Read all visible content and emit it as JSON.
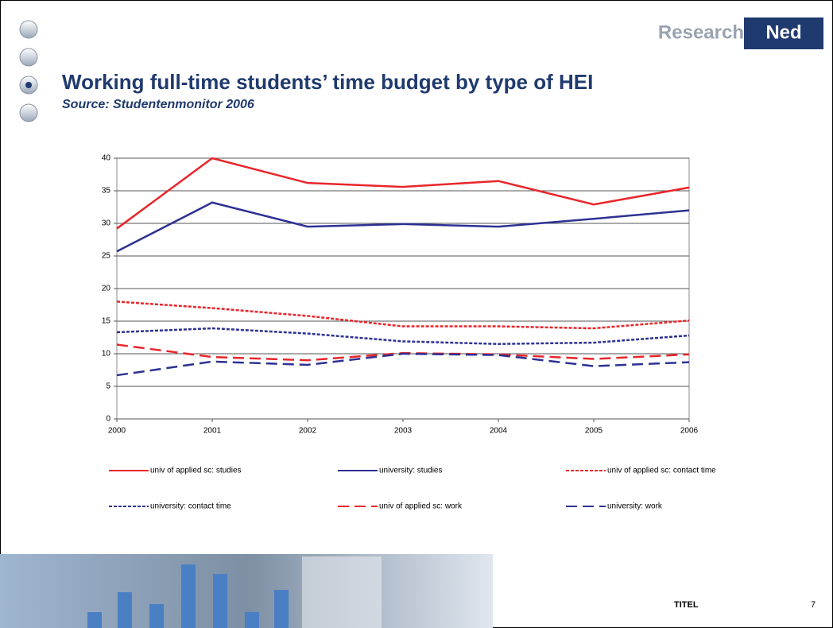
{
  "logo": {
    "left": "Research",
    "right": "Ned"
  },
  "footer": {
    "label": "TITEL",
    "page": "7"
  },
  "chart_data": {
    "type": "line",
    "title": "Working full-time students’ time budget by type of HEI",
    "subtitle": "Source: Studentenmonitor 2006",
    "categories": [
      "2000",
      "2001",
      "2002",
      "2003",
      "2004",
      "2005",
      "2006"
    ],
    "ylim": [
      0,
      40
    ],
    "yticks": [
      0,
      5,
      10,
      15,
      20,
      25,
      30,
      35,
      40
    ],
    "grid": true,
    "series": [
      {
        "name": "univ of applied sc:  studies",
        "color": "#e8262b",
        "dash": "solid",
        "values": [
          29.2,
          40,
          36.2,
          35.6,
          36.5,
          32.9,
          35.5
        ]
      },
      {
        "name": "university:  studies",
        "color": "#2e3192",
        "dash": "solid",
        "values": [
          25.7,
          33.2,
          29.5,
          29.9,
          29.5,
          30.7,
          32.0
        ]
      },
      {
        "name": "univ of applied sc:  contact time",
        "color": "#e8262b",
        "dash": "dotted",
        "values": [
          18.0,
          17.0,
          15.8,
          14.2,
          14.2,
          13.9,
          15.1
        ]
      },
      {
        "name": "university:  contact time",
        "color": "#2e3192",
        "dash": "dotted",
        "values": [
          13.3,
          13.9,
          13.1,
          11.9,
          11.5,
          11.7,
          12.8
        ]
      },
      {
        "name": "univ of applied sc:  work",
        "color": "#e8262b",
        "dash": "dashed",
        "values": [
          11.4,
          9.5,
          9.0,
          10.1,
          9.9,
          9.2,
          9.9
        ]
      },
      {
        "name": "university:  work",
        "color": "#2e3192",
        "dash": "dashed",
        "values": [
          6.7,
          8.8,
          8.3,
          10.0,
          9.8,
          8.1,
          8.7
        ]
      }
    ]
  }
}
